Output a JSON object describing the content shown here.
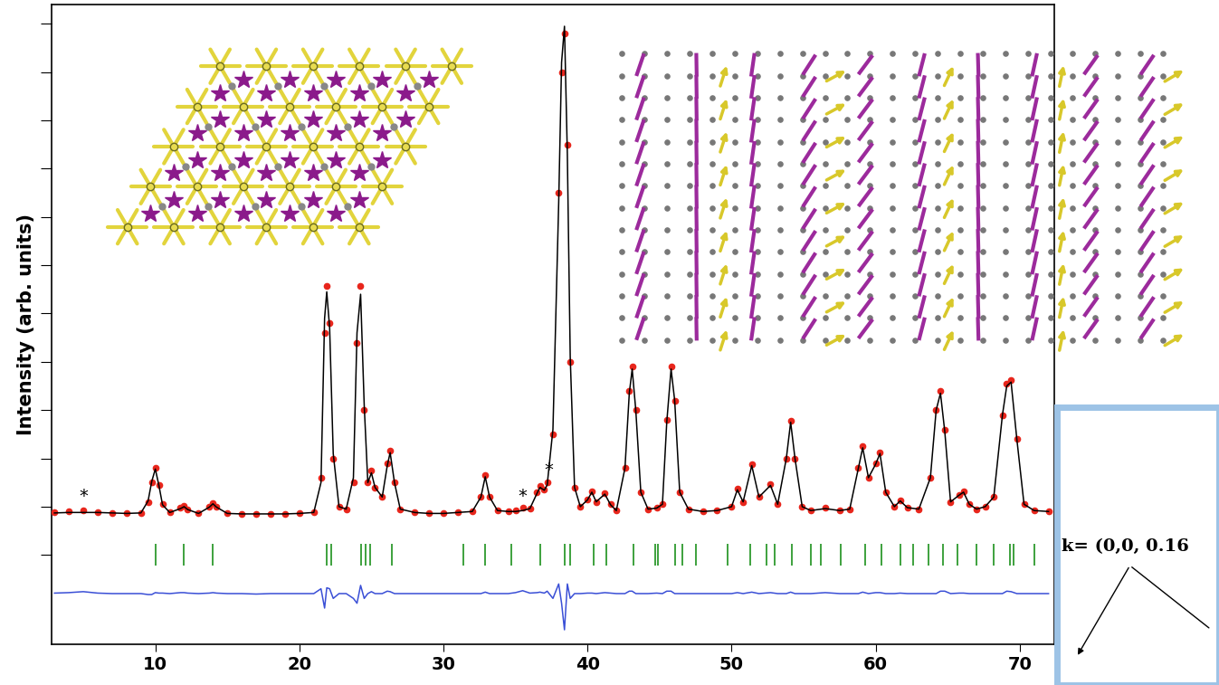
{
  "chart_data": {
    "type": "line",
    "y_label": "Intensity (arb. units)",
    "x": [
      3.0,
      4.0,
      5.0,
      6.0,
      7.0,
      8.0,
      9.0,
      9.5,
      9.75,
      10.0,
      10.25,
      10.5,
      11.0,
      11.75,
      12.0,
      12.25,
      13.0,
      13.75,
      14.0,
      14.25,
      15.0,
      16.0,
      17.0,
      18.0,
      19.0,
      20.0,
      21.0,
      21.5,
      21.75,
      21.9,
      22.1,
      22.35,
      22.75,
      23.25,
      23.75,
      24.0,
      24.25,
      24.5,
      24.75,
      25.0,
      25.25,
      25.75,
      26.1,
      26.3,
      26.6,
      27.0,
      28.0,
      29.0,
      30.0,
      31.0,
      32.0,
      32.6,
      32.9,
      33.2,
      33.75,
      34.5,
      35.0,
      35.5,
      36.0,
      36.5,
      36.7,
      37.0,
      37.2,
      37.6,
      38.0,
      38.2,
      38.4,
      38.6,
      38.8,
      39.1,
      39.5,
      40.0,
      40.3,
      40.6,
      41.2,
      41.6,
      42.0,
      42.6,
      42.9,
      43.1,
      43.35,
      43.7,
      44.2,
      44.8,
      45.2,
      45.5,
      45.8,
      46.05,
      46.4,
      47.0,
      48.0,
      49.0,
      50.0,
      50.4,
      50.8,
      51.4,
      51.9,
      52.7,
      53.2,
      53.8,
      54.1,
      54.4,
      54.9,
      55.5,
      56.5,
      57.5,
      58.2,
      58.8,
      59.1,
      59.5,
      60.0,
      60.3,
      60.7,
      61.3,
      61.7,
      62.2,
      63.0,
      63.8,
      64.2,
      64.5,
      64.8,
      65.2,
      65.8,
      66.1,
      66.5,
      67.0,
      67.6,
      68.2,
      68.8,
      69.1,
      69.4,
      69.8,
      70.3,
      71.0,
      72.0
    ],
    "xlim": [
      2.8,
      72.4
    ],
    "xticks": [
      10,
      20,
      30,
      40,
      50,
      60,
      70
    ],
    "ylim": [
      -1.85,
      11.4
    ],
    "yticks": [
      0,
      1,
      2,
      3,
      4,
      5,
      6,
      7,
      8,
      9,
      10,
      11
    ],
    "tick_labels": "x",
    "series": [
      {
        "type": "scatter",
        "marker": "o",
        "color": "#e8261c",
        "values": [
          0.88,
          0.9,
          0.92,
          0.89,
          0.87,
          0.86,
          0.87,
          1.1,
          1.5,
          1.8,
          1.45,
          1.05,
          0.88,
          0.98,
          1.02,
          0.95,
          0.86,
          1.0,
          1.08,
          1.0,
          0.86,
          0.85,
          0.84,
          0.85,
          0.85,
          0.86,
          0.88,
          1.6,
          4.6,
          5.57,
          4.8,
          2.0,
          1.0,
          0.95,
          1.5,
          4.4,
          5.57,
          3.0,
          1.5,
          1.74,
          1.4,
          1.2,
          1.9,
          2.16,
          1.5,
          0.95,
          0.88,
          0.86,
          0.86,
          0.88,
          0.9,
          1.2,
          1.65,
          1.2,
          0.92,
          0.9,
          0.92,
          0.98,
          0.97,
          1.3,
          1.43,
          1.35,
          1.5,
          2.5,
          7.5,
          10.0,
          10.8,
          8.5,
          4.0,
          1.4,
          1.0,
          1.15,
          1.31,
          1.1,
          1.28,
          1.05,
          0.92,
          1.8,
          3.4,
          3.9,
          3.0,
          1.3,
          0.95,
          0.98,
          1.05,
          2.8,
          3.9,
          3.2,
          1.3,
          0.95,
          0.9,
          0.92,
          1.0,
          1.37,
          1.1,
          1.88,
          1.2,
          1.46,
          1.05,
          2.0,
          2.78,
          2.0,
          1.0,
          0.92,
          0.98,
          0.92,
          0.95,
          1.8,
          2.25,
          1.6,
          1.9,
          2.12,
          1.3,
          1.0,
          1.13,
          0.98,
          0.95,
          1.6,
          3.0,
          3.4,
          2.6,
          1.1,
          1.25,
          1.31,
          1.05,
          0.95,
          1.0,
          1.2,
          2.9,
          3.55,
          3.62,
          2.4,
          1.05,
          0.92,
          0.9
        ]
      },
      {
        "type": "line",
        "color": "#000000",
        "values": [
          0.87,
          0.88,
          0.88,
          0.88,
          0.87,
          0.86,
          0.87,
          1.12,
          1.52,
          1.78,
          1.44,
          1.04,
          0.88,
          0.96,
          1.0,
          0.94,
          0.86,
          0.99,
          1.06,
          0.99,
          0.86,
          0.85,
          0.85,
          0.85,
          0.85,
          0.86,
          0.88,
          1.5,
          4.9,
          5.45,
          4.7,
          2.1,
          1.0,
          0.95,
          1.6,
          4.6,
          5.4,
          3.1,
          1.5,
          1.7,
          1.4,
          1.2,
          1.85,
          2.12,
          1.5,
          0.95,
          0.88,
          0.86,
          0.86,
          0.88,
          0.9,
          1.2,
          1.62,
          1.2,
          0.92,
          0.9,
          0.9,
          0.92,
          0.96,
          1.28,
          1.4,
          1.34,
          1.45,
          2.6,
          7.3,
          10.2,
          10.95,
          8.3,
          4.1,
          1.4,
          1.0,
          1.14,
          1.3,
          1.1,
          1.26,
          1.04,
          0.92,
          1.8,
          3.35,
          3.85,
          3.0,
          1.3,
          0.95,
          0.97,
          1.05,
          2.75,
          3.85,
          3.2,
          1.3,
          0.95,
          0.9,
          0.92,
          1.0,
          1.35,
          1.1,
          1.85,
          1.2,
          1.44,
          1.05,
          2.0,
          2.75,
          2.0,
          1.0,
          0.92,
          0.96,
          0.92,
          0.95,
          1.8,
          2.22,
          1.6,
          1.88,
          2.1,
          1.3,
          1.0,
          1.12,
          0.98,
          0.95,
          1.6,
          3.0,
          3.35,
          2.55,
          1.1,
          1.24,
          1.3,
          1.05,
          0.95,
          1.0,
          1.2,
          2.9,
          3.5,
          3.58,
          2.4,
          1.05,
          0.92,
          0.9
        ]
      },
      {
        "type": "line",
        "color": "#3a4fd6",
        "values": [
          -0.79,
          -0.78,
          -0.76,
          -0.79,
          -0.8,
          -0.8,
          -0.8,
          -0.82,
          -0.82,
          -0.78,
          -0.79,
          -0.79,
          -0.8,
          -0.78,
          -0.78,
          -0.79,
          -0.8,
          -0.79,
          -0.78,
          -0.79,
          -0.8,
          -0.8,
          -0.81,
          -0.8,
          -0.8,
          -0.8,
          -0.8,
          -0.7,
          -1.1,
          -0.68,
          -0.7,
          -0.9,
          -0.8,
          -0.8,
          -0.9,
          -1.0,
          -0.63,
          -0.9,
          -0.8,
          -0.76,
          -0.8,
          -0.8,
          -0.75,
          -0.76,
          -0.8,
          -0.8,
          -0.8,
          -0.8,
          -0.8,
          -0.8,
          -0.8,
          -0.8,
          -0.77,
          -0.8,
          -0.8,
          -0.8,
          -0.78,
          -0.74,
          -0.79,
          -0.78,
          -0.77,
          -0.79,
          -0.75,
          -0.9,
          -0.6,
          -1.0,
          -1.55,
          -0.6,
          -0.9,
          -0.8,
          -0.8,
          -0.79,
          -0.79,
          -0.8,
          -0.78,
          -0.79,
          -0.8,
          -0.8,
          -0.75,
          -0.75,
          -0.8,
          -0.8,
          -0.8,
          -0.79,
          -0.8,
          -0.75,
          -0.75,
          -0.8,
          -0.8,
          -0.8,
          -0.8,
          -0.8,
          -0.8,
          -0.78,
          -0.8,
          -0.77,
          -0.8,
          -0.78,
          -0.8,
          -0.8,
          -0.77,
          -0.8,
          -0.8,
          -0.8,
          -0.78,
          -0.8,
          -0.8,
          -0.8,
          -0.77,
          -0.8,
          -0.78,
          -0.78,
          -0.8,
          -0.8,
          -0.79,
          -0.8,
          -0.8,
          -0.8,
          -0.8,
          -0.75,
          -0.75,
          -0.8,
          -0.79,
          -0.79,
          -0.8,
          -0.8,
          -0.8,
          -0.8,
          -0.8,
          -0.75,
          -0.76,
          -0.8,
          -0.8,
          -0.8,
          -0.8
        ]
      },
      {
        "type": "scatter",
        "marker": "|",
        "color": "#2e9a2e",
        "x": [
          10.0,
          12.0,
          14.0,
          21.9,
          22.2,
          24.3,
          24.6,
          24.9,
          26.4,
          31.4,
          32.9,
          34.7,
          36.7,
          38.4,
          38.8,
          40.4,
          41.3,
          43.2,
          44.7,
          44.9,
          46.1,
          46.6,
          47.5,
          49.7,
          51.3,
          52.4,
          53.0,
          54.2,
          55.5,
          56.2,
          57.6,
          59.3,
          60.4,
          61.7,
          62.6,
          63.7,
          64.7,
          65.7,
          67.0,
          68.2,
          69.3,
          69.6,
          71.0
        ],
        "values": [
          0,
          0,
          0,
          0,
          0,
          0,
          0,
          0,
          0,
          0,
          0,
          0,
          0,
          0,
          0,
          0,
          0,
          0,
          0,
          0,
          0,
          0,
          0,
          0,
          0,
          0,
          0,
          0,
          0,
          0,
          0,
          0,
          0,
          0,
          0,
          0,
          0,
          0,
          0,
          0,
          0,
          0,
          0
        ]
      }
    ],
    "annotations": [
      {
        "text": "*",
        "x": 5.0,
        "y": 1.22
      },
      {
        "text": "*",
        "x": 35.5,
        "y": 1.22
      },
      {
        "text": "*",
        "x": 37.3,
        "y": 1.75
      }
    ],
    "inset_text": "k= (0,0, 0.16"
  }
}
